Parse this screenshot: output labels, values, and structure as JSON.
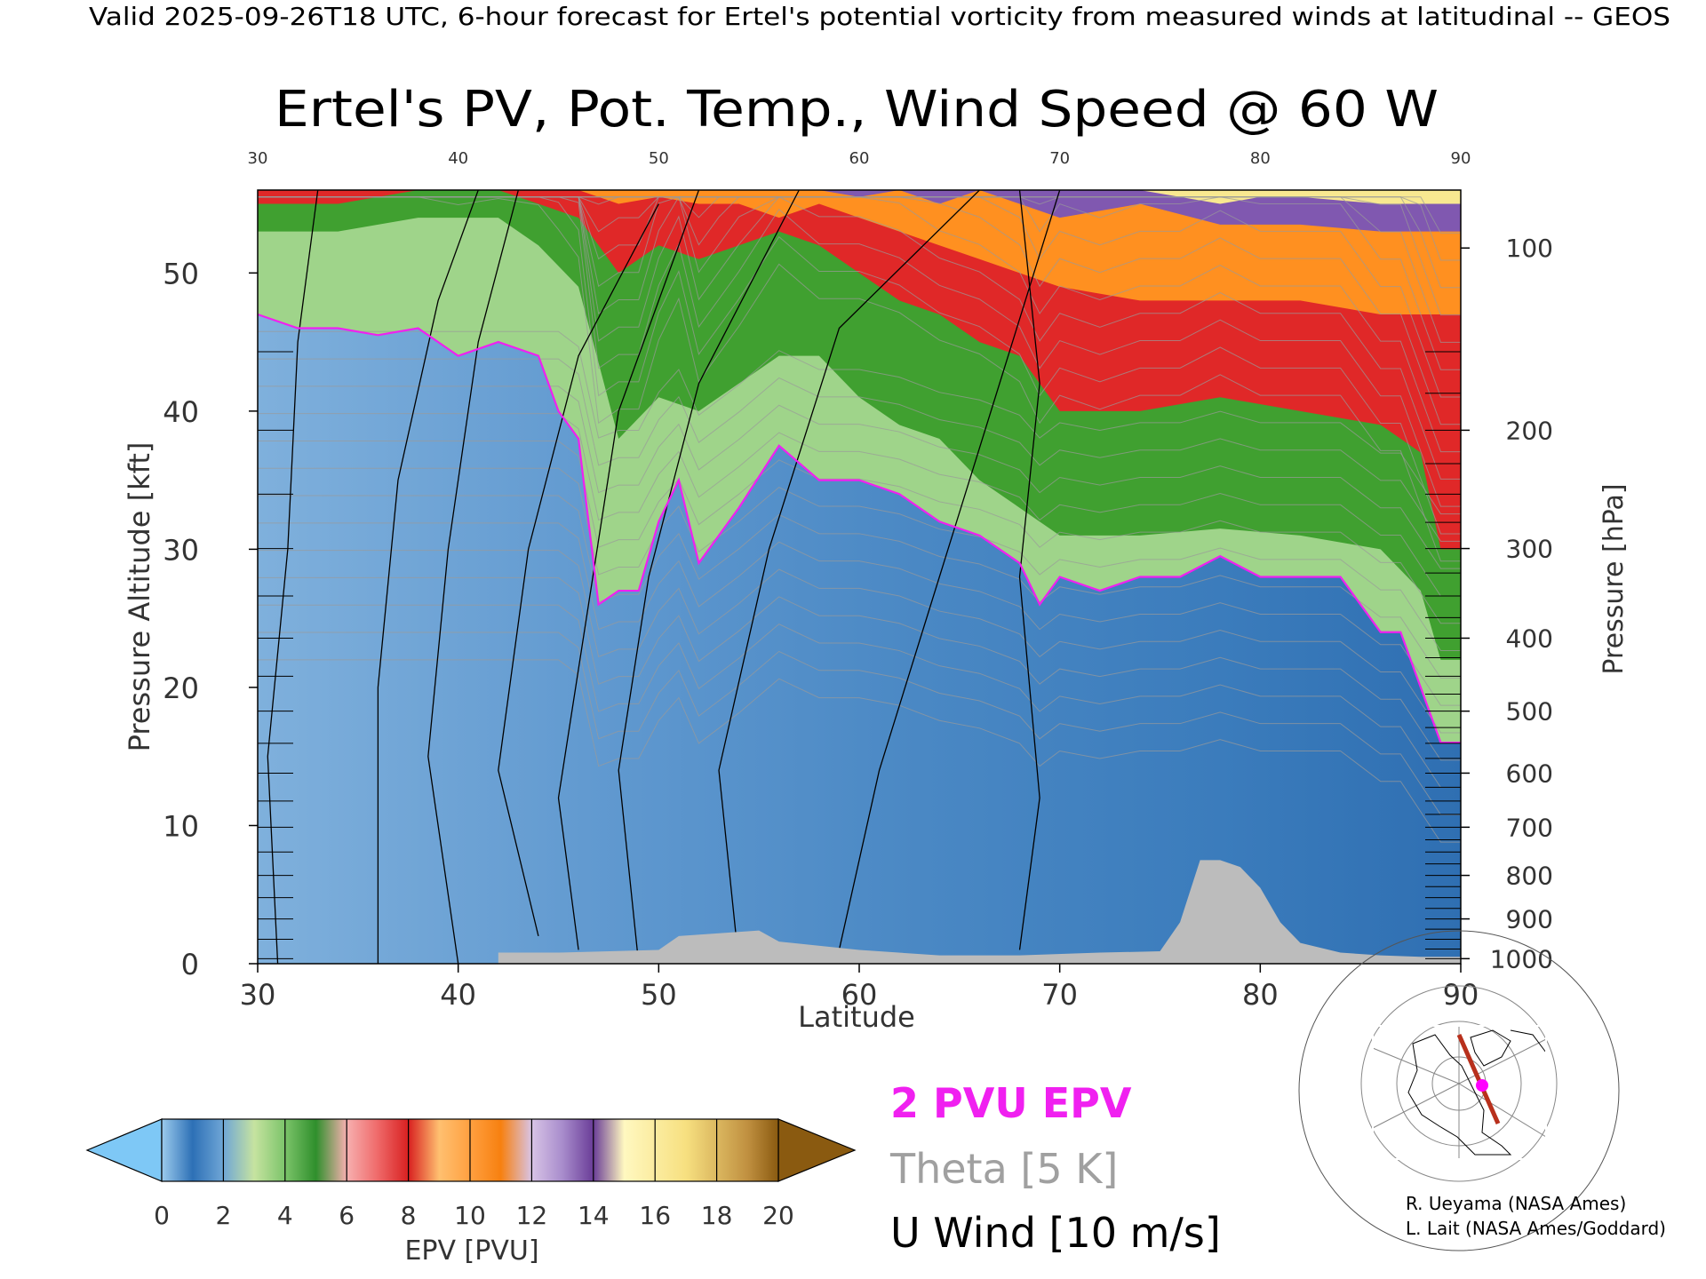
{
  "header": {
    "caption": "Valid 2025-09-26T18 UTC, 6-hour forecast for Ertel's potential vorticity from measured winds at latitudinal -- GEOS"
  },
  "chart_data": {
    "type": "heatmap",
    "title": "Ertel's PV, Pot. Temp., Wind Speed @ 60 W",
    "xlabel": "Latitude",
    "ylabel": "Pressure Altitude [kft]",
    "y2label": "Pressure [hPa]",
    "xlim": [
      30,
      90
    ],
    "ylim": [
      0,
      56
    ],
    "x_ticks": [
      30,
      40,
      50,
      60,
      70,
      80,
      90
    ],
    "x_tick_labels": [
      "30",
      "40",
      "50",
      "60",
      "70",
      "80",
      "90"
    ],
    "y_ticks": [
      0,
      10,
      20,
      30,
      40,
      50
    ],
    "y_tick_labels": [
      "0",
      "10",
      "20",
      "30",
      "40",
      "50"
    ],
    "pressure_ticks": [
      {
        "hpa": 100,
        "label": "100"
      },
      {
        "hpa": 200,
        "label": "200"
      },
      {
        "hpa": 300,
        "label": "300"
      },
      {
        "hpa": 400,
        "label": "400"
      },
      {
        "hpa": 500,
        "label": "500"
      },
      {
        "hpa": 600,
        "label": "600"
      },
      {
        "hpa": 700,
        "label": "700"
      },
      {
        "hpa": 800,
        "label": "800"
      },
      {
        "hpa": 900,
        "label": "900"
      },
      {
        "hpa": 1000,
        "label": "1000"
      }
    ],
    "two_pvu_surface": {
      "lat": [
        30,
        32,
        34,
        36,
        38,
        40,
        42,
        44,
        45,
        46,
        47,
        48,
        49,
        50,
        51,
        52,
        53,
        54,
        56,
        58,
        60,
        62,
        64,
        66,
        68,
        69,
        70,
        72,
        74,
        76,
        78,
        80,
        82,
        84,
        86,
        87,
        88,
        89,
        90
      ],
      "kft": [
        47,
        46,
        46,
        45.5,
        46,
        44,
        45,
        44,
        40,
        38,
        26,
        27,
        27,
        32,
        35,
        29,
        31,
        33,
        37.5,
        35,
        35,
        34,
        32,
        31,
        29,
        26,
        28,
        27,
        28,
        28,
        29.5,
        28,
        28,
        28,
        24,
        24,
        20,
        16,
        16
      ]
    },
    "pv_layers": [
      {
        "color": "#40a030",
        "lat": [
          30,
          34,
          38,
          42,
          44,
          46,
          48,
          50,
          52,
          54,
          56,
          58,
          60,
          62,
          64,
          66,
          68,
          70,
          74,
          78,
          82,
          86,
          88,
          89,
          90
        ],
        "kft": [
          53,
          53,
          54,
          54,
          52,
          49,
          38,
          41,
          40,
          42,
          44,
          44,
          41,
          39,
          38,
          35,
          33,
          31,
          31,
          31.5,
          31,
          30,
          27,
          22,
          22
        ]
      },
      {
        "color": "#e02828",
        "lat": [
          30,
          34,
          38,
          42,
          44,
          46,
          48,
          50,
          52,
          54,
          56,
          58,
          60,
          62,
          64,
          66,
          68,
          70,
          74,
          78,
          82,
          86,
          88,
          89,
          90
        ],
        "kft": [
          55,
          55,
          56,
          56,
          55,
          54,
          50,
          52,
          51,
          52,
          53,
          52,
          50,
          48,
          47,
          45,
          44,
          40,
          40,
          41,
          40,
          39,
          37,
          30,
          30
        ]
      },
      {
        "color": "#ff9020",
        "lat": [
          44,
          46,
          48,
          50,
          52,
          54,
          56,
          58,
          60,
          62,
          64,
          66,
          68,
          70,
          74,
          78,
          82,
          86,
          88,
          90
        ],
        "kft": [
          56,
          56,
          55,
          55.5,
          55,
          55,
          54,
          55,
          54,
          53,
          52,
          51,
          50,
          49,
          48,
          48,
          48,
          47,
          47,
          47
        ]
      },
      {
        "color": "#8058b0",
        "lat": [
          50,
          52,
          54,
          56,
          58,
          60,
          62,
          64,
          66,
          68,
          70,
          74,
          78,
          82,
          86,
          88,
          90
        ],
        "kft": [
          56,
          56,
          56,
          56,
          56,
          55.5,
          56,
          55,
          56,
          55,
          54,
          55,
          53.5,
          53.5,
          53,
          53,
          53
        ]
      },
      {
        "color": "#f8e890",
        "lat": [
          70,
          74,
          76,
          78,
          80,
          82,
          86,
          88,
          90
        ],
        "kft": [
          56,
          56,
          55.5,
          55,
          55.5,
          55.5,
          55,
          55,
          55
        ]
      }
    ],
    "terrain": {
      "lat": [
        42,
        45,
        50,
        51,
        53,
        55,
        56,
        60,
        64,
        68,
        72,
        75,
        76,
        77,
        78,
        79,
        80,
        81,
        82,
        84,
        86,
        88,
        90
      ],
      "kft": [
        0.8,
        0.8,
        1.0,
        2.0,
        2.2,
        2.4,
        1.6,
        1.0,
        0.6,
        0.6,
        0.8,
        0.9,
        3.0,
        7.5,
        7.5,
        7.0,
        5.5,
        3.0,
        1.5,
        0.8,
        0.6,
        0.5,
        0.5
      ]
    },
    "legend": {
      "colorbar_ticks": [
        "0",
        "2",
        "4",
        "6",
        "8",
        "10",
        "12",
        "14",
        "16",
        "18",
        "20"
      ],
      "colorbar_label": "EPV [PVU]",
      "colorbar_colors": [
        "#2d70b6",
        "#6fa6d6",
        "#9fd48a",
        "#3d9a32",
        "#f1888a",
        "#dd2a2a",
        "#ffb060",
        "#f78a1e",
        "#b89ad0",
        "#6a3d98",
        "#f7ec90",
        "#8a5a10"
      ],
      "under_color": "#7ec8f6",
      "over_color": "#8a5a10",
      "entries": [
        {
          "label": "2 PVU EPV",
          "color": "#f020f0"
        },
        {
          "label": "Theta [5 K]",
          "color": "#a0a0a0"
        },
        {
          "label": "U Wind [10 m/s]",
          "color": "#000000"
        }
      ]
    }
  },
  "credits": {
    "line1": "R. Ueyama (NASA Ames)",
    "line2": "L. Lait (NASA Ames/Goddard)"
  }
}
